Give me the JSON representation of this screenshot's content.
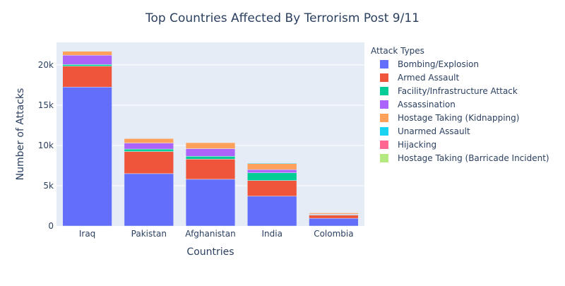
{
  "chart_data": {
    "type": "bar",
    "stacked": true,
    "title": "Top Countries Affected By Terrorism Post 9/11",
    "xlabel": "Countries",
    "ylabel": "Number of Attacks",
    "categories": [
      "Iraq",
      "Pakistan",
      "Afghanistan",
      "India",
      "Colombia"
    ],
    "ylim": [
      0,
      22800
    ],
    "yticks": [
      {
        "value": 0,
        "label": "0"
      },
      {
        "value": 5000,
        "label": "5k"
      },
      {
        "value": 10000,
        "label": "10k"
      },
      {
        "value": 15000,
        "label": "15k"
      },
      {
        "value": 20000,
        "label": "20k"
      }
    ],
    "grid": true,
    "legend_title": "Attack Types",
    "legend_position": "right",
    "series": [
      {
        "name": "Bombing/Explosion",
        "color": "#636efa",
        "values": [
          17250,
          6500,
          5800,
          3700,
          950
        ]
      },
      {
        "name": "Armed Assault",
        "color": "#ef553b",
        "values": [
          2600,
          2750,
          2500,
          1950,
          400
        ]
      },
      {
        "name": "Facility/Infrastructure Attack",
        "color": "#00cc96",
        "values": [
          200,
          300,
          350,
          950,
          60
        ]
      },
      {
        "name": "Assassination",
        "color": "#ab63fa",
        "values": [
          1150,
          750,
          950,
          400,
          70
        ]
      },
      {
        "name": "Hostage Taking (Kidnapping)",
        "color": "#ffa15a",
        "values": [
          500,
          550,
          750,
          750,
          150
        ]
      },
      {
        "name": "Unarmed Assault",
        "color": "#19d3f3",
        "values": [
          20,
          30,
          20,
          80,
          5
        ]
      },
      {
        "name": "Hijacking",
        "color": "#ff6692",
        "values": [
          20,
          20,
          30,
          10,
          10
        ]
      },
      {
        "name": "Hostage Taking (Barricade Incident)",
        "color": "#b6e880",
        "values": [
          20,
          20,
          20,
          20,
          5
        ]
      }
    ],
    "plot_bg": "#e5ecf6",
    "gridline_color": "#ffffff"
  }
}
